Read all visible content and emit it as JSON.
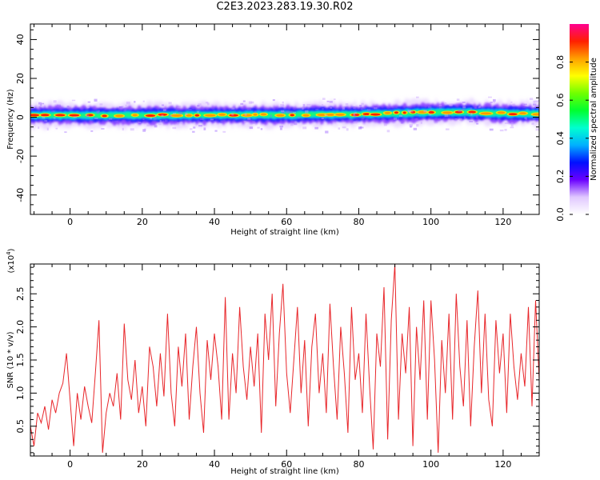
{
  "title": "C2E3.2023.283.19.30.R02",
  "chart_data": [
    {
      "type": "heatmap",
      "xlabel": "Height of straight line (km)",
      "ylabel": "Frequency (Hz)",
      "xlim": [
        -11,
        130
      ],
      "ylim": [
        -50,
        48
      ],
      "xticks": [
        0,
        20,
        40,
        60,
        80,
        100,
        120
      ],
      "xtick_labels": [
        "0",
        "20",
        "40",
        "60",
        "80",
        "100",
        "120"
      ],
      "yticks": [
        -40,
        -20,
        0,
        20,
        40
      ],
      "ytick_labels": [
        "-40",
        "-20",
        "0",
        "20",
        "40"
      ],
      "band": {
        "center_hz": [
          [
            -11,
            1.0
          ],
          [
            0,
            1.0
          ],
          [
            20,
            1.0
          ],
          [
            40,
            1.2
          ],
          [
            60,
            1.2
          ],
          [
            70,
            1.5
          ],
          [
            80,
            1.5
          ],
          [
            90,
            2.0
          ],
          [
            100,
            2.5
          ],
          [
            110,
            2.5
          ],
          [
            120,
            2.0
          ],
          [
            130,
            1.8
          ]
        ],
        "core_halfwidth_hz": 2,
        "outer_halfwidth_hz": 6
      },
      "colorbar": {
        "label": "Normalized spectral amplitude",
        "range": [
          0.0,
          1.0
        ],
        "ticks": [
          0.0,
          0.2,
          0.4,
          0.6,
          0.8
        ],
        "tick_labels": [
          "0.0",
          "0.2",
          "0.4",
          "0.6",
          "0.8"
        ],
        "colors": [
          "#FFFFFF",
          "#E0C8FF",
          "#6A00FF",
          "#0010FF",
          "#00B0FF",
          "#00FFD0",
          "#00FF30",
          "#70FF00",
          "#FFFF00",
          "#FFA000",
          "#FF2000",
          "#FF0090"
        ]
      }
    },
    {
      "type": "line",
      "xlabel": "Height of straight line (km)",
      "ylabel": "SNR (10 * v/v)",
      "exponent_label": "(x10",
      "exponent_power": "4",
      "exponent_close": ")",
      "xlim": [
        -11,
        130
      ],
      "ylim": [
        0.05,
        2.95
      ],
      "xticks": [
        0,
        20,
        40,
        60,
        80,
        100,
        120
      ],
      "xtick_labels": [
        "0",
        "20",
        "40",
        "60",
        "80",
        "100",
        "120"
      ],
      "yticks": [
        0.5,
        1.0,
        1.5,
        2.0,
        2.5
      ],
      "ytick_labels": [
        "0.5",
        "1.0",
        "1.5",
        "2.0",
        "2.5"
      ],
      "line_color": "#E8262A",
      "series": [
        {
          "x": [
            -11,
            -10,
            -9,
            -8,
            -7,
            -6,
            -5,
            -4,
            -3,
            -2,
            -1,
            0,
            1,
            2,
            3,
            4,
            5,
            6,
            7,
            8,
            9,
            10,
            11,
            12,
            13,
            14,
            15,
            16,
            17,
            18,
            19,
            20,
            21,
            22,
            23,
            24,
            25,
            26,
            27,
            28,
            29,
            30,
            31,
            32,
            33,
            34,
            35,
            36,
            37,
            38,
            39,
            40,
            41,
            42,
            43,
            44,
            45,
            46,
            47,
            48,
            49,
            50,
            51,
            52,
            53,
            54,
            55,
            56,
            57,
            58,
            59,
            60,
            61,
            62,
            63,
            64,
            65,
            66,
            67,
            68,
            69,
            70,
            71,
            72,
            73,
            74,
            75,
            76,
            77,
            78,
            79,
            80,
            81,
            82,
            83,
            84,
            85,
            86,
            87,
            88,
            89,
            90,
            91,
            92,
            93,
            94,
            95,
            96,
            97,
            98,
            99,
            100,
            101,
            102,
            103,
            104,
            105,
            106,
            107,
            108,
            109,
            110,
            111,
            112,
            113,
            114,
            115,
            116,
            117,
            118,
            119,
            120,
            121,
            122,
            123,
            124,
            125,
            126,
            127,
            128,
            129,
            130
          ],
          "y": [
            0.5,
            0.2,
            0.7,
            0.55,
            0.8,
            0.45,
            0.9,
            0.7,
            1.0,
            1.15,
            1.6,
            0.9,
            0.2,
            1.0,
            0.6,
            1.1,
            0.8,
            0.55,
            1.3,
            2.1,
            0.1,
            0.7,
            1.0,
            0.8,
            1.3,
            0.6,
            2.05,
            1.2,
            0.9,
            1.5,
            0.7,
            1.1,
            0.5,
            1.7,
            1.4,
            0.8,
            1.6,
            0.95,
            2.2,
            1.0,
            0.5,
            1.7,
            1.1,
            1.9,
            0.6,
            1.4,
            2.0,
            1.0,
            0.4,
            1.8,
            1.2,
            1.9,
            1.4,
            0.6,
            2.45,
            0.6,
            1.6,
            1.0,
            2.3,
            1.4,
            0.9,
            1.7,
            1.1,
            1.9,
            0.4,
            2.2,
            1.5,
            2.5,
            0.8,
            1.9,
            2.65,
            1.3,
            0.7,
            1.5,
            2.3,
            1.0,
            1.8,
            0.5,
            1.7,
            2.2,
            1.0,
            1.6,
            0.7,
            2.35,
            1.4,
            0.6,
            2.0,
            1.3,
            0.4,
            2.3,
            1.2,
            1.6,
            0.7,
            2.2,
            1.1,
            0.15,
            1.9,
            1.4,
            2.6,
            0.3,
            2.1,
            2.95,
            0.6,
            1.9,
            1.3,
            2.3,
            0.2,
            2.0,
            1.2,
            2.4,
            0.6,
            2.4,
            1.5,
            0.1,
            1.8,
            1.0,
            2.2,
            0.6,
            2.5,
            1.4,
            0.8,
            2.1,
            0.5,
            1.7,
            2.55,
            1.0,
            2.2,
            0.9,
            0.5,
            2.1,
            1.3,
            1.9,
            0.7,
            2.2,
            1.4,
            0.9,
            1.6,
            1.1,
            2.3,
            0.8,
            2.4,
            1.2
          ]
        }
      ]
    }
  ]
}
